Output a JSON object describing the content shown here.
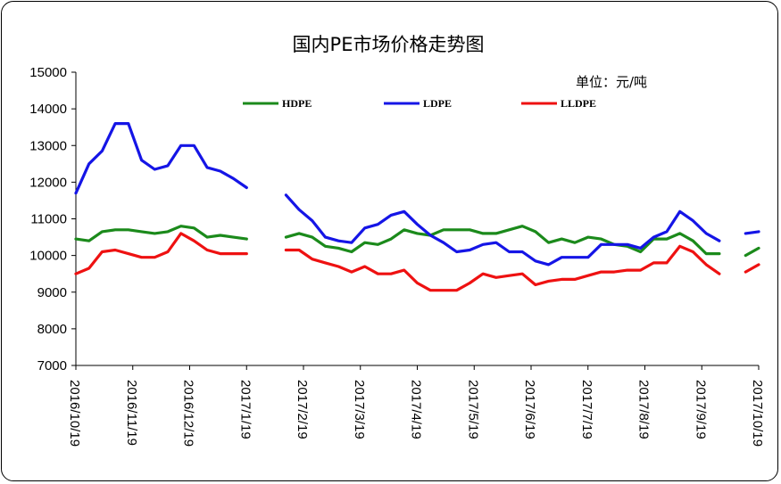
{
  "chart_data": {
    "type": "line",
    "title": "国内PE市场价格走势图",
    "unit": "单位：元/吨",
    "ylim": [
      7000,
      15000
    ],
    "yticks": [
      7000,
      8000,
      9000,
      10000,
      11000,
      12000,
      13000,
      14000,
      15000
    ],
    "ytick_labels": [
      "7000",
      "8000",
      "9000",
      "10000",
      "11000",
      "12000",
      "13000",
      "14000",
      "15000"
    ],
    "xtick_labels": [
      "2016/10/19",
      "2016/11/19",
      "2016/12/19",
      "2017/1/19",
      "2017/2/19",
      "2017/3/19",
      "2017/4/19",
      "2017/5/19",
      "2017/6/19",
      "2017/7/19",
      "2017/8/19",
      "2017/9/19",
      "2017/10/19"
    ],
    "legend_position": "top",
    "grid": false,
    "x_count": 53,
    "series": [
      {
        "name": "HDPE",
        "color": "#1b8a1b",
        "values": [
          10450,
          10400,
          10650,
          10700,
          10700,
          10650,
          10600,
          10650,
          10800,
          10750,
          10500,
          10550,
          10500,
          10450,
          null,
          null,
          10500,
          10600,
          10500,
          10250,
          10200,
          10100,
          10350,
          10300,
          10450,
          10700,
          10600,
          10550,
          10700,
          10700,
          10700,
          10600,
          10600,
          10700,
          10800,
          10650,
          10350,
          10450,
          10350,
          10500,
          10450,
          10300,
          10250,
          10100,
          10450,
          10450,
          10600,
          10400,
          10050,
          10050,
          null,
          10000,
          10200
        ]
      },
      {
        "name": "LDPE",
        "color": "#1515e6",
        "values": [
          11700,
          12500,
          12850,
          13600,
          13600,
          12600,
          12350,
          12450,
          13000,
          13000,
          12400,
          12300,
          12100,
          11850,
          null,
          null,
          11650,
          11250,
          10950,
          10500,
          10400,
          10350,
          10750,
          10850,
          11100,
          11200,
          10850,
          10550,
          10350,
          10100,
          10150,
          10300,
          10350,
          10100,
          10100,
          9850,
          9750,
          9950,
          9950,
          9950,
          10300,
          10300,
          10300,
          10200,
          10500,
          10650,
          11200,
          10950,
          10600,
          10400,
          null,
          10600,
          10650
        ]
      },
      {
        "name": "LLDPE",
        "color": "#ee1111",
        "values": [
          9500,
          9650,
          10100,
          10150,
          10050,
          9950,
          9950,
          10100,
          10600,
          10400,
          10150,
          10050,
          10050,
          10050,
          null,
          null,
          10150,
          10150,
          9900,
          9800,
          9700,
          9550,
          9700,
          9500,
          9500,
          9600,
          9250,
          9050,
          9050,
          9050,
          9250,
          9500,
          9400,
          9450,
          9500,
          9200,
          9300,
          9350,
          9350,
          9450,
          9550,
          9550,
          9600,
          9600,
          9800,
          9800,
          10250,
          10100,
          9750,
          9500,
          null,
          9550,
          9750
        ]
      }
    ]
  }
}
